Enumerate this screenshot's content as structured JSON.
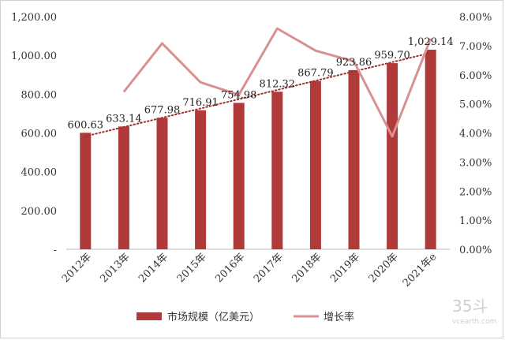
{
  "chart_data": {
    "type": "bar",
    "categories": [
      "2012年",
      "2013年",
      "2014年",
      "2015年",
      "2016年",
      "2017年",
      "2018年",
      "2019年",
      "2020年",
      "2021年e"
    ],
    "series": [
      {
        "name": "市场规模（亿美元）",
        "type": "bar",
        "axis": "left",
        "color": "#b03a3a",
        "values": [
          600.63,
          633.14,
          677.98,
          716.91,
          754.98,
          812.32,
          867.79,
          923.86,
          959.7,
          1029.14
        ],
        "labels": [
          "600.63",
          "633.14",
          "677.98",
          "716.91",
          "754.98",
          "812.32",
          "867.79",
          "923.86",
          "959.70",
          "1,029.14"
        ]
      },
      {
        "name": "增长率",
        "type": "line",
        "axis": "right",
        "color": "#d99090",
        "values": [
          null,
          5.41,
          7.08,
          5.74,
          5.31,
          7.59,
          6.83,
          6.46,
          3.88,
          7.24
        ]
      }
    ],
    "trendline": {
      "type": "linear",
      "of_series": "市场规模（亿美元）",
      "style": "dotted",
      "color": "#a03030"
    },
    "y_left": {
      "ylim": [
        0,
        1200
      ],
      "ticks": [
        "-",
        "200.00",
        "400.00",
        "600.00",
        "800.00",
        "1,000.00",
        "1,200.00"
      ]
    },
    "y_right": {
      "ylim": [
        0,
        8
      ],
      "ticks": [
        "0.00%",
        "1.00%",
        "2.00%",
        "3.00%",
        "4.00%",
        "5.00%",
        "6.00%",
        "7.00%",
        "8.00%"
      ]
    },
    "grid": false,
    "legend": "bottom"
  },
  "watermark": {
    "logo": "35斗",
    "site": "vcearth.com"
  }
}
